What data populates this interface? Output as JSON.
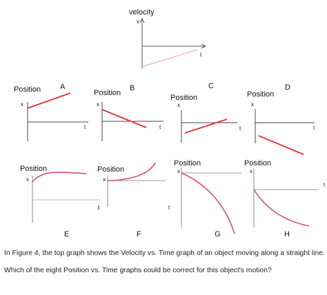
{
  "velocity_graph": {
    "title": "velocity",
    "y_axis": "v",
    "x_axis": "t"
  },
  "panels": [
    {
      "id": "A",
      "title": "Position",
      "y_axis": "x",
      "x_axis": "t"
    },
    {
      "id": "B",
      "title": "Position",
      "y_axis": "x",
      "x_axis": "t"
    },
    {
      "id": "C",
      "title": "Position",
      "y_axis": "x",
      "x_axis": "t"
    },
    {
      "id": "D",
      "title": "Position",
      "y_axis": "x",
      "x_axis": "t"
    },
    {
      "id": "E",
      "title": "Position",
      "y_axis": "x",
      "x_axis": "t"
    },
    {
      "id": "F",
      "title": "Position",
      "y_axis": "x",
      "x_axis": "t"
    },
    {
      "id": "G",
      "title": "Position",
      "y_axis": "x",
      "x_axis": "t"
    },
    {
      "id": "H",
      "title": "Position",
      "y_axis": "x",
      "x_axis": "t"
    }
  ],
  "question": {
    "line1": "In Figure 4, the top graph shows the Velocity vs. Time graph of an object moving along a straight line.",
    "line2": "Which of the eight Position vs. Time graphs could be correct for this object's motion?"
  },
  "colors": {
    "axis": "#444444",
    "red_line": "#e0302f",
    "pink_curve": "#d84a6a",
    "faint_line": "#f2a9c3"
  }
}
